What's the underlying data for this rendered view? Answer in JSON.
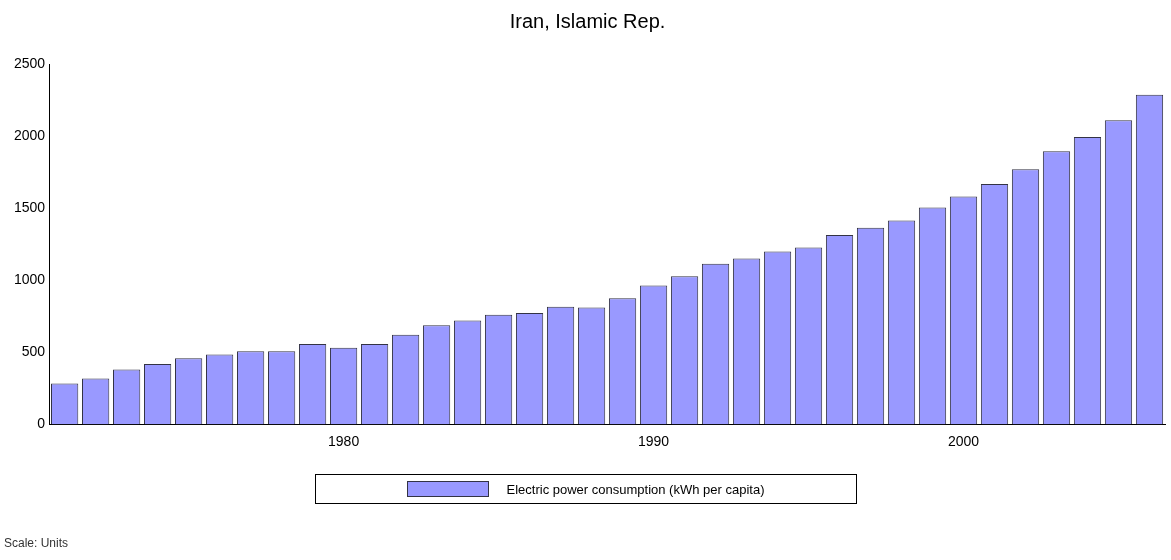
{
  "chart_data": {
    "type": "bar",
    "title": "Iran, Islamic Rep.",
    "categories": [
      null,
      null,
      null,
      null,
      null,
      null,
      null,
      null,
      null,
      "1980",
      null,
      null,
      null,
      null,
      null,
      null,
      null,
      null,
      null,
      "1990",
      null,
      null,
      null,
      null,
      null,
      null,
      null,
      null,
      null,
      "2000",
      null,
      null,
      null,
      null,
      null,
      null
    ],
    "series": [
      {
        "name": "Electric power consumption (kWh per capita)",
        "color": "#9999ff",
        "values": [
          283,
          317,
          380,
          417,
          457,
          483,
          506,
          506,
          557,
          531,
          557,
          620,
          686,
          720,
          760,
          771,
          815,
          810,
          875,
          962,
          1026,
          1114,
          1150,
          1198,
          1226,
          1313,
          1364,
          1414,
          1504,
          1580,
          1668,
          1769,
          1895,
          1994,
          2109,
          2286
        ]
      }
    ],
    "ylim": [
      0,
      2500
    ],
    "yticks": [
      0,
      500,
      1000,
      1500,
      2000,
      2500
    ],
    "grid": false,
    "legend": "bottom",
    "annotations": [
      "Scale: Units"
    ]
  }
}
